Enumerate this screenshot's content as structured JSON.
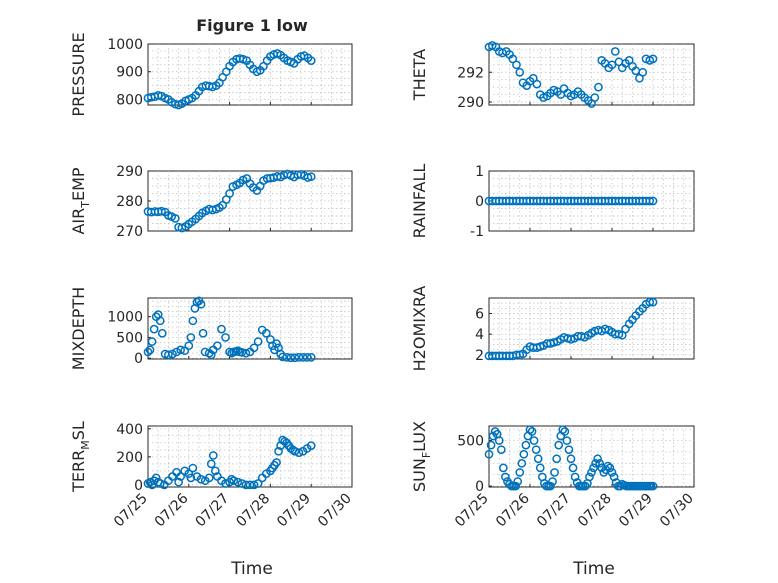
{
  "figure": {
    "title": "Figure 1 low",
    "xlabel": "Time",
    "x_ticklabels": [
      "07/25",
      "07/26",
      "07/27",
      "07/28",
      "07/29",
      "07/30"
    ],
    "marker_color": "#0072bd"
  },
  "chart_data": [
    {
      "type": "scatter",
      "name": "PRESSURE",
      "ylabel": "PRESSURE",
      "sub": "",
      "title": "Figure 1 low",
      "grid": true,
      "xlim": [
        "07/25",
        "07/30"
      ],
      "ylim": [
        780,
        1000
      ],
      "yticks": [
        800,
        900,
        1000
      ],
      "x_day": [
        0.0,
        0.08,
        0.17,
        0.25,
        0.33,
        0.42,
        0.5,
        0.58,
        0.67,
        0.75,
        0.83,
        0.92,
        1.0,
        1.08,
        1.17,
        1.25,
        1.33,
        1.42,
        1.5,
        1.58,
        1.67,
        1.75,
        1.83,
        1.92,
        2.0,
        2.08,
        2.17,
        2.25,
        2.33,
        2.42,
        2.5,
        2.58,
        2.67,
        2.75,
        2.83,
        2.92,
        3.0,
        3.08,
        3.17,
        3.25,
        3.33,
        3.42,
        3.5,
        3.58,
        3.67,
        3.75,
        3.83,
        3.92,
        4.0
      ],
      "y": [
        805,
        808,
        810,
        815,
        812,
        805,
        800,
        790,
        783,
        780,
        785,
        795,
        800,
        805,
        815,
        830,
        845,
        850,
        848,
        845,
        850,
        860,
        880,
        900,
        920,
        935,
        945,
        948,
        945,
        940,
        925,
        910,
        900,
        905,
        920,
        940,
        955,
        962,
        966,
        960,
        950,
        940,
        935,
        930,
        945,
        955,
        958,
        950,
        940
      ]
    },
    {
      "type": "scatter",
      "name": "THETA",
      "ylabel": "THETA",
      "sub": "",
      "grid": true,
      "xlim": [
        "07/25",
        "07/30"
      ],
      "ylim": [
        289.8,
        293.9
      ],
      "yticks": [
        290,
        292
      ],
      "x_day": [
        0.0,
        0.08,
        0.17,
        0.25,
        0.33,
        0.42,
        0.5,
        0.58,
        0.67,
        0.75,
        0.83,
        0.92,
        1.0,
        1.08,
        1.17,
        1.25,
        1.33,
        1.42,
        1.5,
        1.58,
        1.67,
        1.75,
        1.83,
        1.92,
        2.0,
        2.08,
        2.17,
        2.25,
        2.33,
        2.42,
        2.5,
        2.58,
        2.67,
        2.75,
        2.83,
        2.92,
        3.0,
        3.08,
        3.17,
        3.25,
        3.33,
        3.42,
        3.5,
        3.58,
        3.67,
        3.75,
        3.83,
        3.92,
        4.0
      ],
      "y": [
        293.7,
        293.8,
        293.7,
        293.4,
        293.3,
        293.4,
        293.2,
        292.9,
        292.5,
        292.0,
        291.3,
        291.1,
        291.4,
        291.6,
        291.2,
        290.5,
        290.3,
        290.4,
        290.6,
        290.8,
        290.7,
        290.5,
        290.9,
        290.6,
        290.4,
        290.5,
        290.7,
        290.5,
        290.3,
        290.1,
        289.9,
        290.3,
        291.0,
        292.8,
        292.6,
        292.3,
        292.5,
        293.4,
        292.7,
        292.3,
        292.6,
        292.8,
        292.4,
        292.1,
        291.6,
        292.0,
        292.9,
        292.8,
        292.9
      ]
    },
    {
      "type": "scatter",
      "name": "AIR_TEMP",
      "ylabel": "AIR",
      "sub": "T",
      "ylabel_tail": "EMP",
      "grid": true,
      "xlim": [
        "07/25",
        "07/30"
      ],
      "ylim": [
        270,
        290
      ],
      "yticks": [
        270,
        280,
        290
      ],
      "x_day": [
        0.0,
        0.08,
        0.17,
        0.25,
        0.33,
        0.42,
        0.5,
        0.58,
        0.67,
        0.75,
        0.83,
        0.92,
        1.0,
        1.08,
        1.17,
        1.25,
        1.33,
        1.42,
        1.5,
        1.58,
        1.67,
        1.75,
        1.83,
        1.92,
        2.0,
        2.08,
        2.17,
        2.25,
        2.33,
        2.42,
        2.5,
        2.58,
        2.67,
        2.75,
        2.83,
        2.92,
        3.0,
        3.08,
        3.17,
        3.25,
        3.33,
        3.42,
        3.5,
        3.58,
        3.67,
        3.75,
        3.83,
        3.92,
        4.0
      ],
      "y": [
        276.5,
        276.3,
        276.5,
        276.4,
        276.6,
        276.3,
        275.2,
        274.8,
        274.2,
        271.3,
        271.0,
        271.5,
        272.3,
        273.1,
        274.0,
        275.0,
        276.0,
        276.7,
        277.3,
        277.0,
        277.3,
        277.8,
        278.6,
        280.5,
        282.5,
        284.8,
        285.4,
        286.0,
        287.0,
        287.5,
        285.8,
        284.5,
        283.5,
        285.0,
        286.8,
        287.5,
        287.6,
        287.8,
        288.2,
        288.0,
        288.6,
        289.0,
        288.5,
        288.0,
        288.7,
        288.9,
        288.4,
        287.8,
        288.1
      ]
    },
    {
      "type": "scatter",
      "name": "RAINFALL",
      "ylabel": "RAINFALL",
      "sub": "",
      "grid": true,
      "xlim": [
        "07/25",
        "07/30"
      ],
      "ylim": [
        -1,
        1
      ],
      "yticks": [
        -1,
        0,
        1
      ],
      "x_day": [
        0.0,
        0.08,
        0.17,
        0.25,
        0.33,
        0.42,
        0.5,
        0.58,
        0.67,
        0.75,
        0.83,
        0.92,
        1.0,
        1.08,
        1.17,
        1.25,
        1.33,
        1.42,
        1.5,
        1.58,
        1.67,
        1.75,
        1.83,
        1.92,
        2.0,
        2.08,
        2.17,
        2.25,
        2.33,
        2.42,
        2.5,
        2.58,
        2.67,
        2.75,
        2.83,
        2.92,
        3.0,
        3.08,
        3.17,
        3.25,
        3.33,
        3.42,
        3.5,
        3.58,
        3.67,
        3.75,
        3.83,
        3.92,
        4.0
      ],
      "y": [
        0,
        0,
        0,
        0,
        0,
        0,
        0,
        0,
        0,
        0,
        0,
        0,
        0,
        0,
        0,
        0,
        0,
        0,
        0,
        0,
        0,
        0,
        0,
        0,
        0,
        0,
        0,
        0,
        0,
        0,
        0,
        0,
        0,
        0,
        0,
        0,
        0,
        0,
        0,
        0,
        0,
        0,
        0,
        0,
        0,
        0,
        0,
        0,
        0
      ]
    },
    {
      "type": "scatter",
      "name": "MIXDEPTH",
      "ylabel": "MIXDEPTH",
      "sub": "",
      "grid": true,
      "xlim": [
        "07/25",
        "07/30"
      ],
      "ylim": [
        -20,
        1450
      ],
      "yticks": [
        0,
        500,
        1000
      ],
      "x_day": [
        0.0,
        0.05,
        0.1,
        0.15,
        0.2,
        0.25,
        0.3,
        0.35,
        0.42,
        0.5,
        0.6,
        0.7,
        0.8,
        0.9,
        1.0,
        1.05,
        1.1,
        1.15,
        1.2,
        1.25,
        1.3,
        1.35,
        1.4,
        1.5,
        1.55,
        1.6,
        1.7,
        1.8,
        1.9,
        2.0,
        2.05,
        2.1,
        2.15,
        2.2,
        2.25,
        2.3,
        2.4,
        2.5,
        2.6,
        2.7,
        2.8,
        2.9,
        3.0,
        3.05,
        3.1,
        3.15,
        3.2,
        3.25,
        3.3,
        3.4,
        3.5,
        3.6,
        3.7,
        3.8,
        3.9,
        4.0
      ],
      "y": [
        150,
        200,
        400,
        700,
        1000,
        1050,
        900,
        600,
        100,
        80,
        100,
        150,
        200,
        180,
        300,
        500,
        900,
        1200,
        1350,
        1380,
        1300,
        600,
        150,
        120,
        80,
        200,
        300,
        700,
        500,
        150,
        120,
        150,
        160,
        180,
        150,
        140,
        120,
        150,
        250,
        400,
        680,
        600,
        450,
        300,
        200,
        350,
        250,
        100,
        30,
        20,
        10,
        10,
        20,
        20,
        20,
        20
      ]
    },
    {
      "type": "scatter",
      "name": "H2OMIXRA",
      "ylabel": "H2OMIXRA",
      "sub": "",
      "grid": true,
      "xlim": [
        "07/25",
        "07/30"
      ],
      "ylim": [
        1.6,
        7.5
      ],
      "yticks": [
        2,
        4,
        6
      ],
      "x_day": [
        0.0,
        0.08,
        0.17,
        0.25,
        0.33,
        0.42,
        0.5,
        0.58,
        0.67,
        0.75,
        0.83,
        0.92,
        1.0,
        1.08,
        1.17,
        1.25,
        1.33,
        1.42,
        1.5,
        1.58,
        1.67,
        1.75,
        1.83,
        1.92,
        2.0,
        2.08,
        2.17,
        2.25,
        2.33,
        2.42,
        2.5,
        2.58,
        2.67,
        2.75,
        2.83,
        2.92,
        3.0,
        3.08,
        3.17,
        3.25,
        3.33,
        3.42,
        3.5,
        3.58,
        3.67,
        3.75,
        3.83,
        3.92,
        4.0
      ],
      "y": [
        1.9,
        1.9,
        1.9,
        1.9,
        1.9,
        1.9,
        1.9,
        1.9,
        2.0,
        2.0,
        2.1,
        2.5,
        2.8,
        2.7,
        2.7,
        2.8,
        2.9,
        3.1,
        3.1,
        3.2,
        3.3,
        3.5,
        3.7,
        3.6,
        3.5,
        3.6,
        3.8,
        3.8,
        3.7,
        3.9,
        4.1,
        4.3,
        4.4,
        4.3,
        4.5,
        4.4,
        4.2,
        4.0,
        4.0,
        3.9,
        4.5,
        5.0,
        5.4,
        5.8,
        6.2,
        6.5,
        6.9,
        7.1,
        7.1
      ]
    },
    {
      "type": "scatter",
      "name": "TERR_MSL",
      "ylabel": "TERR",
      "sub": "M",
      "ylabel_tail": "SL",
      "grid": true,
      "xlim": [
        "07/25",
        "07/30"
      ],
      "ylim": [
        -15,
        420
      ],
      "yticks": [
        0,
        200,
        400
      ],
      "x_day": [
        0.0,
        0.05,
        0.1,
        0.15,
        0.2,
        0.25,
        0.3,
        0.4,
        0.5,
        0.6,
        0.7,
        0.75,
        0.8,
        0.9,
        1.0,
        1.05,
        1.1,
        1.2,
        1.3,
        1.4,
        1.5,
        1.55,
        1.6,
        1.65,
        1.7,
        1.8,
        1.9,
        2.0,
        2.05,
        2.1,
        2.2,
        2.3,
        2.4,
        2.5,
        2.6,
        2.7,
        2.8,
        2.9,
        3.0,
        3.05,
        3.1,
        3.15,
        3.2,
        3.25,
        3.3,
        3.35,
        3.4,
        3.45,
        3.5,
        3.55,
        3.6,
        3.7,
        3.8,
        3.9,
        4.0
      ],
      "y": [
        10,
        20,
        0,
        30,
        50,
        20,
        10,
        0,
        30,
        60,
        90,
        20,
        60,
        100,
        80,
        50,
        120,
        60,
        40,
        30,
        50,
        150,
        210,
        100,
        60,
        30,
        10,
        20,
        40,
        30,
        20,
        10,
        0,
        0,
        0,
        10,
        50,
        80,
        100,
        120,
        140,
        160,
        240,
        280,
        320,
        310,
        300,
        280,
        260,
        250,
        240,
        230,
        240,
        260,
        280
      ]
    },
    {
      "type": "scatter",
      "name": "SUN_FLUX",
      "ylabel": "SUN",
      "sub": "F",
      "ylabel_tail": "LUX",
      "grid": true,
      "xlim": [
        "07/25",
        "07/30"
      ],
      "ylim": [
        -10,
        660
      ],
      "yticks": [
        0,
        500
      ],
      "x_day": [
        0.0,
        0.05,
        0.1,
        0.15,
        0.2,
        0.25,
        0.3,
        0.35,
        0.4,
        0.45,
        0.5,
        0.55,
        0.6,
        0.65,
        0.7,
        0.75,
        0.8,
        0.85,
        0.9,
        0.95,
        1.0,
        1.05,
        1.1,
        1.15,
        1.2,
        1.25,
        1.3,
        1.35,
        1.4,
        1.45,
        1.5,
        1.55,
        1.6,
        1.65,
        1.7,
        1.75,
        1.8,
        1.85,
        1.9,
        1.95,
        2.0,
        2.05,
        2.1,
        2.15,
        2.2,
        2.25,
        2.3,
        2.35,
        2.4,
        2.45,
        2.5,
        2.55,
        2.6,
        2.65,
        2.7,
        2.75,
        2.8,
        2.85,
        2.9,
        2.95,
        3.0,
        3.05,
        3.1,
        3.15,
        3.2,
        3.25,
        3.3,
        3.35,
        3.4,
        3.45,
        3.5,
        3.55,
        3.6,
        3.65,
        3.7,
        3.75,
        3.8,
        3.85,
        3.9,
        3.95,
        4.0
      ],
      "y": [
        350,
        450,
        550,
        600,
        570,
        500,
        400,
        200,
        100,
        50,
        20,
        0,
        0,
        0,
        50,
        150,
        250,
        350,
        450,
        550,
        620,
        600,
        500,
        400,
        300,
        200,
        100,
        30,
        0,
        0,
        0,
        50,
        150,
        300,
        450,
        550,
        620,
        600,
        500,
        400,
        300,
        200,
        100,
        40,
        0,
        0,
        0,
        0,
        30,
        100,
        150,
        200,
        250,
        300,
        250,
        200,
        150,
        180,
        220,
        200,
        150,
        100,
        40,
        0,
        0,
        20,
        10,
        0,
        0,
        0,
        0,
        0,
        0,
        0,
        0,
        0,
        0,
        0,
        0,
        0,
        0
      ]
    }
  ]
}
